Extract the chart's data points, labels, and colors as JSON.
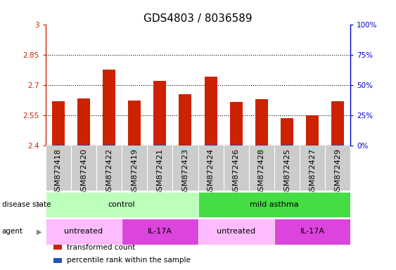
{
  "title": "GDS4803 / 8036589",
  "samples": [
    "GSM872418",
    "GSM872420",
    "GSM872422",
    "GSM872419",
    "GSM872421",
    "GSM872423",
    "GSM872424",
    "GSM872426",
    "GSM872428",
    "GSM872425",
    "GSM872427",
    "GSM872429"
  ],
  "transformed_counts": [
    2.62,
    2.635,
    2.775,
    2.625,
    2.72,
    2.655,
    2.74,
    2.615,
    2.63,
    2.535,
    2.55,
    2.62
  ],
  "percentile_ranks_pct": [
    2,
    3,
    4,
    2,
    4,
    3,
    4,
    2,
    2,
    2,
    2,
    2
  ],
  "y_min": 2.4,
  "y_max": 3.0,
  "y_ticks_left": [
    2.4,
    2.55,
    2.7,
    2.85,
    3.0
  ],
  "y_ticks_left_labels": [
    "2.4",
    "2.55",
    "2.7",
    "2.85",
    "3"
  ],
  "y_ticks_right_labels": [
    "0%",
    "25%",
    "50%",
    "75%",
    "100%"
  ],
  "y_ticks_right_pct": [
    0,
    25,
    50,
    75,
    100
  ],
  "bar_color_red": "#cc2200",
  "bar_color_blue": "#2255bb",
  "disease_state_groups": [
    {
      "label": "control",
      "start": 0,
      "end": 6,
      "color": "#bbffbb"
    },
    {
      "label": "mild asthma",
      "start": 6,
      "end": 12,
      "color": "#44dd44"
    }
  ],
  "agent_groups": [
    {
      "label": "untreated",
      "start": 0,
      "end": 3,
      "color": "#ffbbff"
    },
    {
      "label": "IL-17A",
      "start": 3,
      "end": 6,
      "color": "#dd44dd"
    },
    {
      "label": "untreated",
      "start": 6,
      "end": 9,
      "color": "#ffbbff"
    },
    {
      "label": "IL-17A",
      "start": 9,
      "end": 12,
      "color": "#dd44dd"
    }
  ],
  "legend_items": [
    {
      "label": "transformed count",
      "color": "#cc2200"
    },
    {
      "label": "percentile rank within the sample",
      "color": "#2255bb"
    }
  ],
  "left_axis_color": "#cc2200",
  "right_axis_color": "#0000cc",
  "tick_bg_color": "#cccccc",
  "label_fontsize": 8,
  "tick_label_fontsize": 7.5,
  "title_fontsize": 11,
  "bar_width": 0.5
}
